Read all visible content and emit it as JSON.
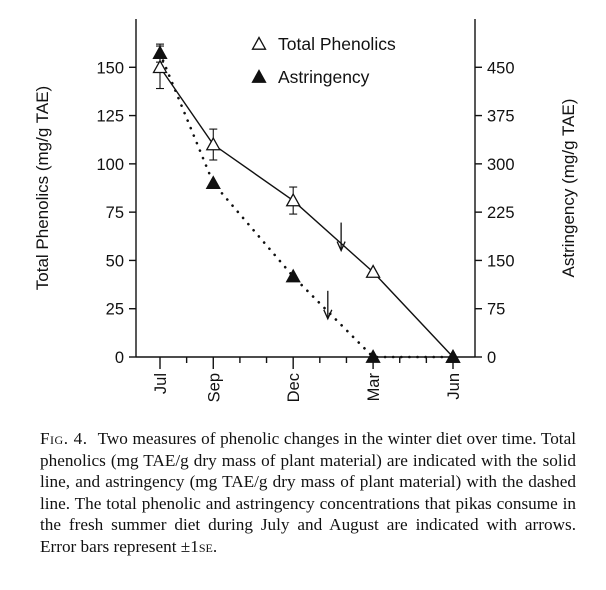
{
  "chart_data": {
    "type": "line",
    "x_categories": [
      "Jul",
      "Sep",
      "Dec",
      "Mar",
      "Jun"
    ],
    "x_positions": [
      0,
      2,
      5,
      8,
      11
    ],
    "left_axis": {
      "label": "Total Phenolics (mg/g TAE)",
      "ylim": [
        0,
        175
      ],
      "ticks": [
        0,
        25,
        50,
        75,
        100,
        125,
        150
      ]
    },
    "right_axis": {
      "label": "Astringency (mg/g TAE)",
      "ylim": [
        0,
        525
      ],
      "ticks": [
        0,
        75,
        150,
        225,
        300,
        375,
        450
      ]
    },
    "series": [
      {
        "name": "Total Phenolics",
        "axis": "left",
        "marker": "open-triangle",
        "line": "solid",
        "points": [
          {
            "x": "Jul",
            "y": 150,
            "err": 11
          },
          {
            "x": "Sep",
            "y": 110,
            "err": 8
          },
          {
            "x": "Dec",
            "y": 81,
            "err": 7
          },
          {
            "x": "Mar",
            "y": 44,
            "err": 0
          },
          {
            "x": "Jun",
            "y": 0,
            "err": 0
          }
        ]
      },
      {
        "name": "Astringency",
        "axis": "right",
        "marker": "filled-triangle",
        "line": "dotted",
        "points": [
          {
            "x": "Jul",
            "y": 472,
            "err": 14
          },
          {
            "x": "Sep",
            "y": 270,
            "err": 0
          },
          {
            "x": "Dec",
            "y": 125,
            "err": 0
          },
          {
            "x": "Mar",
            "y": 0,
            "err": 0
          },
          {
            "x": "Jun",
            "y": 0,
            "err": 0
          }
        ]
      }
    ],
    "annotations": [
      {
        "type": "arrow",
        "series": "Total Phenolics",
        "x_position": 6.8,
        "y": 52
      },
      {
        "type": "arrow",
        "series": "Astringency",
        "x_position": 6.3,
        "y": 50
      }
    ],
    "legend": {
      "placement": "top-center"
    },
    "grid": false
  },
  "caption": {
    "fig_label": "Fig. 4.",
    "part1": "Two measures of phenolic changes in the winter diet over time. Total phenolics (mg TAE/g dry mass of plant material) are indicated with the solid line, and astringency (mg TAE/g dry mass of plant material) with the dashed line. The total phenolic and astringency concentrations that pikas consume in the fresh summer diet during July and August are indicated with arrows. Error bars represent ±1",
    "se": "se",
    "end": "."
  }
}
